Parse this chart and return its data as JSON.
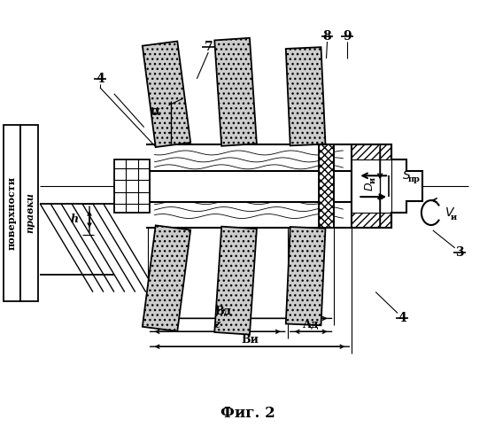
{
  "title": "Фиг. 2",
  "bg_color": "#ffffff",
  "fig_width": 5.59,
  "fig_height": 5.0,
  "labels": {
    "alpha": "α",
    "7": "7",
    "8": "8",
    "9": "9",
    "4": "4",
    "3": "3",
    "Spr": "S",
    "Spr_sub": "пр",
    "Vi": "V",
    "Vi_sub": "и",
    "Di": "D",
    "Di_sub": "и",
    "Bd": "Вд",
    "z": "z",
    "Ad": "Ад",
    "Bi": "Ви",
    "h": "h",
    "poverkhnosti": "поверхности",
    "pravki": "правки"
  }
}
